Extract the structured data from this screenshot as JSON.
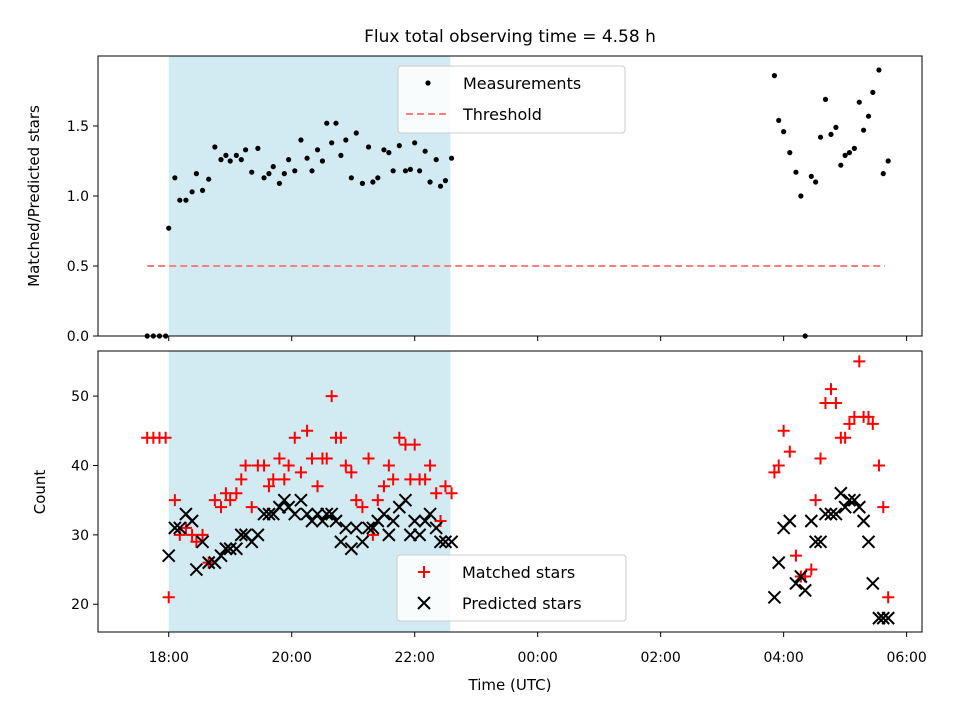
{
  "chart_data": {
    "title": "Flux total observing time = 4.58 h",
    "type": "scatter",
    "x_tick_labels": [
      "18:00",
      "20:00",
      "22:00",
      "00:00",
      "02:00",
      "04:00",
      "06:00"
    ],
    "x_tick_hours": [
      18,
      20,
      22,
      24,
      26,
      28,
      30
    ],
    "xlim": [
      16.85,
      30.25
    ],
    "xlabel": "Time (UTC)",
    "shaded_span_hours": [
      18.0,
      22.58
    ],
    "shade_color": "#add8e6",
    "top": {
      "ylabel": "Matched/Predicted stars",
      "ylim": [
        0,
        2.0
      ],
      "y_ticks": [
        0.0,
        0.5,
        1.0,
        1.5
      ],
      "y_tick_labels": [
        "0.0",
        "0.5",
        "1.0",
        "1.5"
      ],
      "threshold": {
        "name": "Threshold",
        "value": 0.5,
        "x_range": [
          17.65,
          29.65
        ],
        "color": "#ff7f7f"
      },
      "measurements": {
        "name": "Measurements",
        "color": "#000000",
        "x": [
          17.65,
          17.75,
          17.85,
          17.95,
          18.0,
          18.1,
          18.18,
          18.28,
          18.38,
          18.45,
          18.55,
          18.65,
          18.75,
          18.85,
          18.93,
          19.0,
          19.1,
          19.18,
          19.25,
          19.35,
          19.45,
          19.55,
          19.63,
          19.7,
          19.8,
          19.88,
          19.95,
          20.05,
          20.15,
          20.25,
          20.33,
          20.42,
          20.5,
          20.57,
          20.65,
          20.72,
          20.8,
          20.88,
          20.97,
          21.05,
          21.15,
          21.25,
          21.32,
          21.4,
          21.5,
          21.58,
          21.65,
          21.75,
          21.85,
          21.93,
          22.0,
          22.08,
          22.17,
          22.25,
          22.35,
          22.42,
          22.5,
          22.6,
          27.85,
          27.92,
          28.0,
          28.1,
          28.2,
          28.28,
          28.35,
          28.45,
          28.52,
          28.6,
          28.68,
          28.77,
          28.85,
          28.93,
          29.0,
          29.07,
          29.15,
          29.23,
          29.3,
          29.38,
          29.45,
          29.55,
          29.62,
          29.7
        ],
        "y": [
          0.0,
          0.0,
          0.0,
          0.0,
          0.77,
          1.13,
          0.97,
          0.97,
          1.03,
          1.16,
          1.04,
          1.12,
          1.35,
          1.26,
          1.29,
          1.25,
          1.29,
          1.26,
          1.33,
          1.17,
          1.34,
          1.13,
          1.16,
          1.21,
          1.09,
          1.16,
          1.26,
          1.18,
          1.4,
          1.27,
          1.18,
          1.33,
          1.25,
          1.52,
          1.38,
          1.52,
          1.29,
          1.4,
          1.13,
          1.45,
          1.09,
          1.35,
          1.1,
          1.13,
          1.33,
          1.31,
          1.18,
          1.36,
          1.18,
          1.19,
          1.38,
          1.18,
          1.32,
          1.1,
          1.26,
          1.07,
          1.11,
          1.27,
          1.86,
          1.54,
          1.46,
          1.31,
          1.17,
          1.0,
          0.0,
          1.14,
          1.1,
          1.42,
          1.69,
          1.44,
          1.49,
          1.22,
          1.29,
          1.31,
          1.34,
          1.67,
          1.47,
          1.57,
          1.74,
          1.9,
          1.16,
          1.25
        ]
      },
      "legend_location": "upper center"
    },
    "bottom": {
      "ylabel": "Count",
      "ylim": [
        16,
        56.5
      ],
      "y_ticks": [
        20,
        30,
        40,
        50
      ],
      "y_tick_labels": [
        "20",
        "30",
        "40",
        "50"
      ],
      "series": [
        {
          "name": "Matched stars",
          "color": "#ff0000",
          "marker": "plus",
          "x": [
            17.65,
            17.75,
            17.85,
            17.95,
            18.0,
            18.1,
            18.18,
            18.28,
            18.38,
            18.45,
            18.55,
            18.65,
            18.75,
            18.85,
            18.93,
            19.0,
            19.1,
            19.18,
            19.25,
            19.35,
            19.45,
            19.55,
            19.63,
            19.7,
            19.8,
            19.88,
            19.95,
            20.05,
            20.15,
            20.25,
            20.33,
            20.42,
            20.5,
            20.57,
            20.65,
            20.72,
            20.8,
            20.88,
            20.97,
            21.05,
            21.15,
            21.25,
            21.32,
            21.4,
            21.5,
            21.58,
            21.65,
            21.75,
            21.85,
            21.93,
            22.0,
            22.08,
            22.17,
            22.25,
            22.35,
            22.42,
            22.5,
            22.6,
            27.85,
            27.92,
            28.0,
            28.1,
            28.2,
            28.28,
            28.35,
            28.45,
            28.52,
            28.6,
            28.68,
            28.77,
            28.85,
            28.93,
            29.0,
            29.07,
            29.15,
            29.23,
            29.3,
            29.38,
            29.45,
            29.55,
            29.62,
            29.7
          ],
          "y": [
            44,
            44,
            44,
            44,
            21,
            35,
            30,
            31,
            30,
            29,
            30,
            26,
            35,
            34,
            36,
            35,
            36,
            38,
            40,
            34,
            40,
            40,
            37,
            38,
            41,
            38,
            40,
            44,
            39,
            45,
            41,
            37,
            41,
            41,
            50,
            44,
            44,
            40,
            39,
            35,
            34,
            41,
            30,
            35,
            37,
            40,
            38,
            44,
            43,
            38,
            43,
            38,
            38,
            40,
            36,
            32,
            37,
            36,
            39,
            40,
            45,
            42,
            27,
            24,
            24,
            25,
            35,
            41,
            49,
            51,
            49,
            44,
            44,
            46,
            47,
            55,
            47,
            47,
            46,
            40,
            34,
            21
          ]
        },
        {
          "name": "Predicted stars",
          "color": "#000000",
          "marker": "x",
          "x": [
            18.0,
            18.1,
            18.18,
            18.28,
            18.38,
            18.45,
            18.55,
            18.65,
            18.75,
            18.85,
            18.93,
            19.0,
            19.1,
            19.18,
            19.25,
            19.35,
            19.45,
            19.55,
            19.63,
            19.7,
            19.8,
            19.88,
            19.95,
            20.05,
            20.15,
            20.25,
            20.33,
            20.42,
            20.5,
            20.57,
            20.65,
            20.72,
            20.8,
            20.88,
            20.97,
            21.05,
            21.15,
            21.25,
            21.32,
            21.4,
            21.5,
            21.58,
            21.65,
            21.75,
            21.85,
            21.93,
            22.0,
            22.08,
            22.17,
            22.25,
            22.35,
            22.42,
            22.5,
            22.6,
            27.85,
            27.92,
            28.0,
            28.1,
            28.2,
            28.28,
            28.35,
            28.45,
            28.52,
            28.6,
            28.68,
            28.77,
            28.85,
            28.93,
            29.0,
            29.07,
            29.15,
            29.23,
            29.3,
            29.38,
            29.45,
            29.55,
            29.62,
            29.7
          ],
          "y": [
            27,
            31,
            31,
            33,
            32,
            25,
            29,
            26,
            26,
            27,
            28,
            28,
            28,
            30,
            30,
            29,
            30,
            33,
            33,
            33,
            34,
            35,
            34,
            33,
            35,
            33,
            32,
            33,
            32,
            33,
            33,
            32,
            29,
            31,
            28,
            31,
            29,
            31,
            31,
            32,
            33,
            30,
            32,
            34,
            35,
            30,
            32,
            30,
            32,
            33,
            31,
            29,
            29,
            29,
            21,
            26,
            31,
            32,
            23,
            24,
            22,
            32,
            29,
            29,
            33,
            33,
            33,
            36,
            34,
            35,
            35,
            34,
            32,
            29,
            23,
            18,
            18,
            18
          ]
        }
      ],
      "legend_location": "lower center"
    }
  }
}
